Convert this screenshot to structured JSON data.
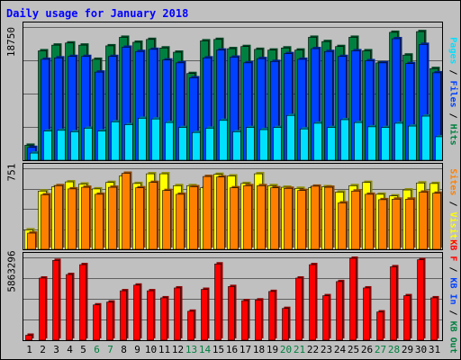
{
  "chart_data": [
    {
      "type": "bar",
      "title": "Daily usage for January 2018",
      "ymax_label": "18750",
      "ylim": [
        0,
        18750
      ],
      "grid": "horizontal",
      "legend_position": "right",
      "categories": [
        "1",
        "2",
        "3",
        "4",
        "5",
        "6",
        "7",
        "8",
        "9",
        "10",
        "11",
        "12",
        "13",
        "14",
        "15",
        "16",
        "17",
        "18",
        "19",
        "20",
        "21",
        "22",
        "23",
        "24",
        "25",
        "26",
        "27",
        "28",
        "29",
        "30",
        "31"
      ],
      "series": [
        {
          "name": "Hits",
          "color": "#008040",
          "values": [
            2100,
            15400,
            16200,
            16500,
            16200,
            14200,
            16100,
            17300,
            16600,
            17000,
            15800,
            15200,
            12200,
            16800,
            17000,
            15700,
            16000,
            15600,
            15500,
            15800,
            15500,
            17300,
            16700,
            16000,
            17300,
            15400,
            13700,
            18000,
            14800,
            18100,
            12900
          ]
        },
        {
          "name": "Files",
          "color": "#0040ff",
          "values": [
            1800,
            14200,
            14400,
            14600,
            14600,
            12400,
            14600,
            15900,
            15300,
            15600,
            14100,
            13700,
            11600,
            14400,
            15500,
            14500,
            13700,
            14300,
            13900,
            15000,
            14200,
            15700,
            15300,
            14600,
            15400,
            14000,
            13700,
            17100,
            13600,
            16300,
            12300
          ]
        },
        {
          "name": "Pages",
          "color": "#00e0ff",
          "values": [
            1000,
            4100,
            4200,
            4000,
            4500,
            4100,
            5400,
            5000,
            5900,
            5800,
            5300,
            4600,
            3900,
            4500,
            5600,
            4000,
            4600,
            4300,
            4600,
            6300,
            4400,
            5200,
            4600,
            5700,
            5300,
            4700,
            4600,
            5200,
            4800,
            6200,
            3300
          ]
        }
      ]
    },
    {
      "type": "bar",
      "ymax_label": "751",
      "ylim": [
        0,
        751
      ],
      "grid": "horizontal",
      "legend_position": "right",
      "categories": [
        "1",
        "2",
        "3",
        "4",
        "5",
        "6",
        "7",
        "8",
        "9",
        "10",
        "11",
        "12",
        "13",
        "14",
        "15",
        "16",
        "17",
        "18",
        "19",
        "20",
        "21",
        "22",
        "23",
        "24",
        "25",
        "26",
        "27",
        "28",
        "29",
        "30",
        "31"
      ],
      "series": [
        {
          "name": "Visits",
          "color": "#ffff00",
          "values": [
            180,
            540,
            580,
            625,
            605,
            560,
            620,
            680,
            610,
            700,
            700,
            590,
            590,
            570,
            695,
            680,
            610,
            700,
            590,
            575,
            565,
            570,
            580,
            530,
            590,
            620,
            510,
            495,
            550,
            615,
            610
          ]
        },
        {
          "name": "Sites",
          "color": "#ff8000",
          "values": [
            150,
            505,
            590,
            560,
            575,
            510,
            575,
            705,
            570,
            620,
            545,
            510,
            580,
            675,
            670,
            570,
            590,
            590,
            570,
            565,
            545,
            585,
            575,
            430,
            540,
            510,
            460,
            465,
            465,
            530,
            520
          ]
        }
      ]
    },
    {
      "type": "bar",
      "ymax_label": "5863296",
      "ylim": [
        0,
        5863296
      ],
      "grid": "horizontal",
      "legend_position": "right",
      "categories": [
        "1",
        "2",
        "3",
        "4",
        "5",
        "6",
        "7",
        "8",
        "9",
        "10",
        "11",
        "12",
        "13",
        "14",
        "15",
        "16",
        "17",
        "18",
        "19",
        "20",
        "21",
        "22",
        "23",
        "24",
        "25",
        "26",
        "27",
        "28",
        "29",
        "30",
        "31"
      ],
      "legend": [
        "KB F",
        "KB In",
        "KB Out"
      ],
      "series": [
        {
          "name": "KB F",
          "color": "#ff0000",
          "values": [
            350000,
            4400000,
            5650000,
            4650000,
            5350000,
            2500000,
            2700000,
            3500000,
            3900000,
            3500000,
            3000000,
            3700000,
            2050000,
            3600000,
            5400000,
            3800000,
            2800000,
            2850000,
            3450000,
            2250000,
            4400000,
            5350000,
            3150000,
            4150000,
            5800000,
            3700000,
            2000000,
            5200000,
            3150000,
            5700000,
            3000000
          ]
        }
      ]
    }
  ],
  "legend_top": {
    "pages": "Pages",
    "files": "Files",
    "hits": "Hits",
    "sep": " / "
  },
  "legend_mid": {
    "visits": "Visits",
    "sites": "Sites",
    "sep": " / "
  },
  "legend_bot": {
    "kbf": "KB F",
    "kbin": "KB In",
    "kbout": "KB Out",
    "sep": " / "
  },
  "weekend_days": [
    6,
    7,
    13,
    14,
    20,
    21,
    27,
    28
  ],
  "colors": {
    "title": "#0000ff",
    "weekday_label": "#000000",
    "weekend_label": "#008040",
    "gridline": "#000000",
    "panel_bg": "#c0c0c0"
  }
}
